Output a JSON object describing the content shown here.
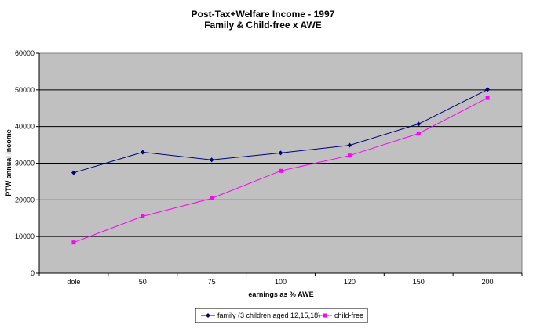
{
  "chart_data": {
    "type": "line",
    "title": "Post-Tax+Welfare Income - 1997",
    "subtitle": "Family & Child-free x AWE",
    "xlabel": "earnings as % AWE",
    "ylabel": "PTW annual income",
    "categories": [
      "dole",
      "50",
      "75",
      "100",
      "120",
      "150",
      "200"
    ],
    "ylim": [
      0,
      60000
    ],
    "yticks": [
      "0",
      "10000",
      "20000",
      "30000",
      "40000",
      "50000",
      "60000"
    ],
    "grid": true,
    "legend_position": "bottom",
    "plot_background": "#c0c0c0",
    "series": [
      {
        "name": "family (3 children aged 12,15,18)",
        "color": "#000080",
        "marker": "diamond",
        "values": [
          27400,
          33000,
          30900,
          32800,
          34900,
          40700,
          50100
        ]
      },
      {
        "name": "child-free",
        "color": "#ff00ff",
        "marker": "square",
        "values": [
          8400,
          15500,
          20400,
          27900,
          32100,
          38100,
          47800
        ]
      }
    ]
  }
}
